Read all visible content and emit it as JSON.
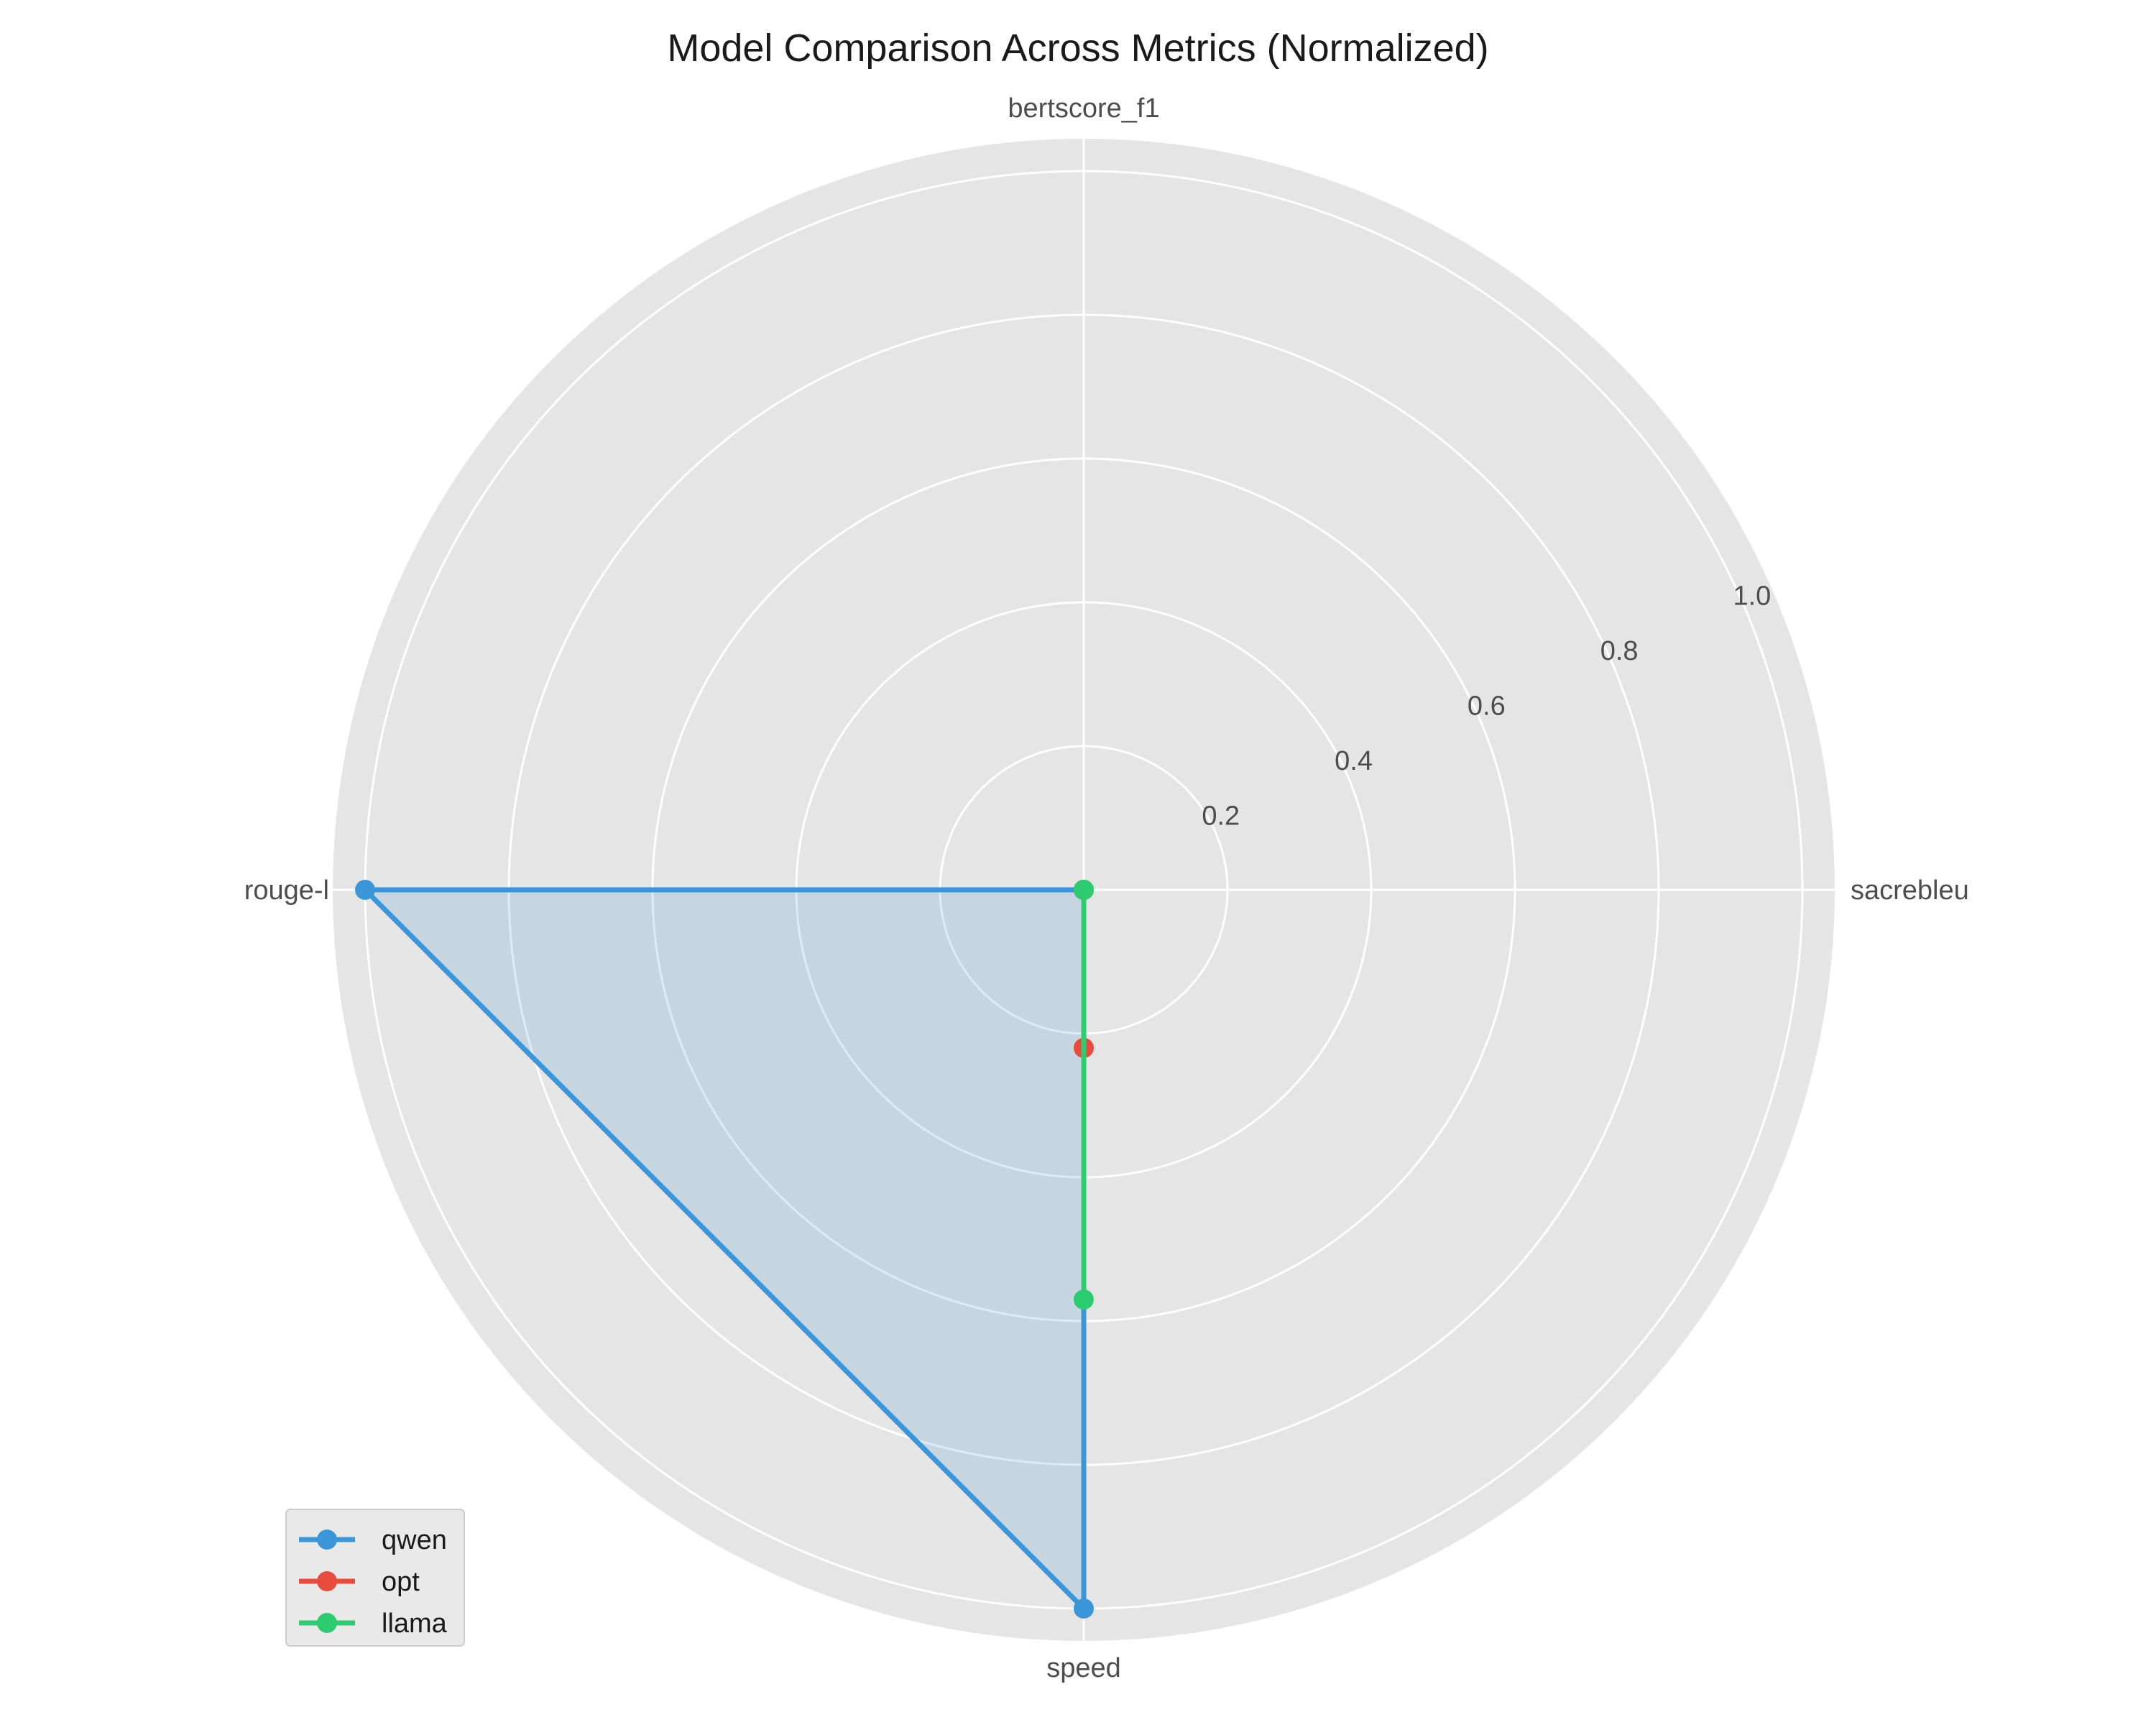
{
  "chart_data": {
    "type": "radar",
    "title": "Model Comparison Across Metrics (Normalized)",
    "axes": [
      "bertscore_f1",
      "sacrebleu",
      "speed",
      "rouge-L"
    ],
    "axis_labels_shown": [
      "bertscore_f1",
      "sacrebleu",
      "speed",
      "rouge-l"
    ],
    "rlim": [
      0,
      1.0
    ],
    "r_ticks": [
      "0.2",
      "0.4",
      "0.6",
      "0.8",
      "1.0"
    ],
    "grid": true,
    "legend_position": "lower-left",
    "background_color": "#e5e5e5",
    "grid_color": "#ffffff",
    "series": [
      {
        "name": "qwen",
        "color": "#3a96d9",
        "values": [
          0.0,
          0.0,
          1.0,
          1.0
        ],
        "filled": true
      },
      {
        "name": "opt",
        "color": "#e74c3c",
        "values": [
          0.0,
          0.0,
          0.22,
          0.0
        ],
        "filled": false
      },
      {
        "name": "llama",
        "color": "#2ecc71",
        "values": [
          0.0,
          0.0,
          0.57,
          0.0
        ],
        "filled": false
      }
    ]
  }
}
